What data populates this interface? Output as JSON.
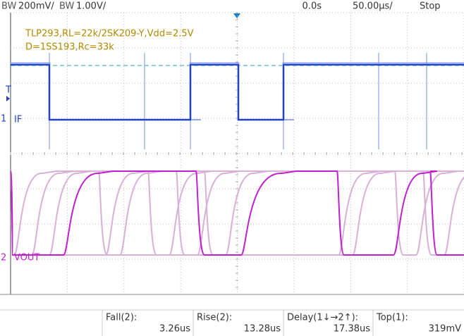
{
  "status_bar": {
    "ch1_bw": "BW",
    "ch1_scale": "200mV/",
    "ch2_bw": "BW",
    "ch2_scale": "1.00V/",
    "delay": "0.0s",
    "timebase": "50.00µs/",
    "state": "Stop"
  },
  "annotation": {
    "line1": "TLP293,RL=22k/2SK209-Y,Vdd=2.5V",
    "line2": "D=1SS193,Rc=33k"
  },
  "markers": {
    "trigger": "T",
    "ch1_number": "1",
    "ch1_label": "IF",
    "ch2_number": "2",
    "ch2_label": "VOUT"
  },
  "measurements": [
    {
      "label": "Fall(2):",
      "value": "3.26us"
    },
    {
      "label": "Rise(2):",
      "value": "13.28us"
    },
    {
      "label": "Delay(1↓→2↑):",
      "value": "17.38us"
    },
    {
      "label": "Top(1):",
      "value": "319mV"
    }
  ]
}
